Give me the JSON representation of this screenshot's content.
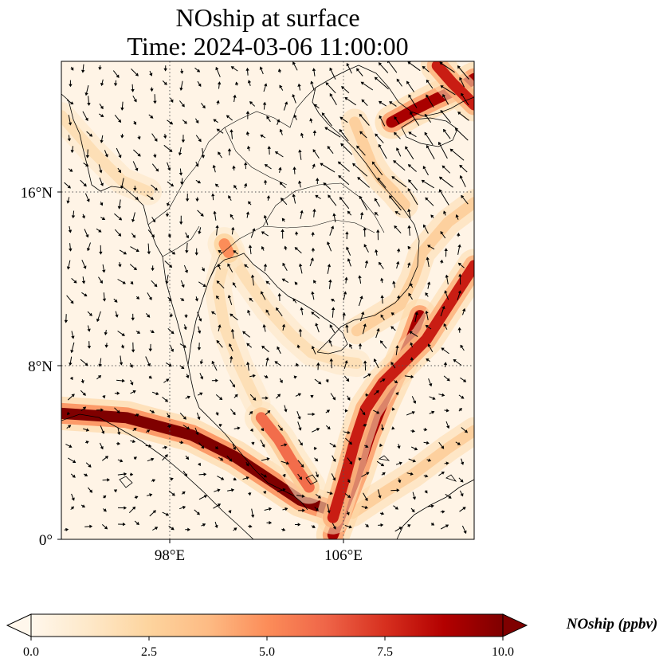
{
  "title": {
    "line1": "NOship at surface",
    "line2": "Time: 2024-03-06 11:00:00"
  },
  "map": {
    "variable": "NOship",
    "extent": {
      "lon_min": 93,
      "lon_max": 112,
      "lat_min": 0,
      "lat_max": 22
    },
    "lon_ticks": [
      {
        "value": 98,
        "label": "98°E"
      },
      {
        "value": 106,
        "label": "106°E"
      }
    ],
    "lat_ticks": [
      {
        "value": 16,
        "label": "16°N"
      },
      {
        "value": 8,
        "label": "8°N"
      },
      {
        "value": 0,
        "label": "0°"
      }
    ],
    "gridlines": true
  },
  "colorbar": {
    "label": "NOship (ppbv)",
    "min": 0.0,
    "max": 10.0,
    "extend": "both",
    "ticks": [
      {
        "value": 0.0,
        "label": "0.0"
      },
      {
        "value": 2.5,
        "label": "2.5"
      },
      {
        "value": 5.0,
        "label": "5.0"
      },
      {
        "value": 7.5,
        "label": "7.5"
      },
      {
        "value": 10.0,
        "label": "10.0"
      }
    ],
    "colormap": [
      "#fff7ec",
      "#fee8c8",
      "#fdd49e",
      "#fdbb84",
      "#fc8d59",
      "#ef6548",
      "#d7301f",
      "#b30000",
      "#7f0000"
    ]
  },
  "shipping_lanes": [
    {
      "name": "strait-of-malacca",
      "value": 10,
      "points": [
        [
          93,
          5.8
        ],
        [
          96,
          5.6
        ],
        [
          99,
          4.8
        ],
        [
          101,
          3.8
        ],
        [
          102.5,
          2.8
        ],
        [
          104,
          1.8
        ],
        [
          105.5,
          1.3
        ]
      ]
    },
    {
      "name": "singapore-north-lane-a",
      "value": 9,
      "points": [
        [
          105.5,
          0.2
        ],
        [
          106,
          1.5
        ],
        [
          106.6,
          3.0
        ],
        [
          107.2,
          4.8
        ],
        [
          107.8,
          6.3
        ],
        [
          108.4,
          7.6
        ],
        [
          109.1,
          9.2
        ],
        [
          109.5,
          10.3
        ]
      ]
    },
    {
      "name": "singapore-north-lane-b",
      "value": 8,
      "points": [
        [
          105.5,
          1.0
        ],
        [
          106.1,
          3.0
        ],
        [
          106.5,
          4.5
        ],
        [
          107,
          6.0
        ],
        [
          107.8,
          7.2
        ],
        [
          108.8,
          8.2
        ],
        [
          109.8,
          9.2
        ],
        [
          110.7,
          10.6
        ],
        [
          112,
          12.6
        ]
      ]
    },
    {
      "name": "malacca-side-branch",
      "value": 6,
      "points": [
        [
          102.2,
          5.6
        ],
        [
          103,
          4.6
        ],
        [
          103.6,
          3.6
        ],
        [
          104.4,
          2.4
        ]
      ]
    },
    {
      "name": "gulf-of-tonkin",
      "value": 9,
      "points": [
        [
          108.2,
          19.2
        ],
        [
          109.3,
          19.8
        ],
        [
          110.3,
          20.3
        ],
        [
          111.2,
          20.7
        ],
        [
          112,
          21.2
        ]
      ]
    },
    {
      "name": "hainan-north",
      "value": 8,
      "points": [
        [
          110.3,
          21.8
        ],
        [
          111,
          21.0
        ],
        [
          112,
          20.0
        ]
      ]
    },
    {
      "name": "bangkok-plume",
      "value": 5,
      "points": [
        [
          100.5,
          13.6
        ],
        [
          100.7,
          13.2
        ]
      ]
    }
  ],
  "faint_lanes": [
    {
      "name": "vietnam-coast",
      "value": 3,
      "points": [
        [
          112,
          15.5
        ],
        [
          110.8,
          14.6
        ],
        [
          109.6,
          13.2
        ],
        [
          109.2,
          12.0
        ],
        [
          108.6,
          10.8
        ],
        [
          107.6,
          10.2
        ],
        [
          106.6,
          9.6
        ]
      ]
    },
    {
      "name": "gulf-of-thailand-east",
      "value": 2,
      "points": [
        [
          100.7,
          13.3
        ],
        [
          101.5,
          12.0
        ],
        [
          102.5,
          10.6
        ],
        [
          103.6,
          9.4
        ],
        [
          104.5,
          8.6
        ],
        [
          105.8,
          8.2
        ],
        [
          106.6,
          8.1
        ]
      ]
    },
    {
      "name": "gulf-of-thailand-west",
      "value": 2,
      "points": [
        [
          100.6,
          13.2
        ],
        [
          100.2,
          11.6
        ],
        [
          100.5,
          9.8
        ],
        [
          101.2,
          8.0
        ],
        [
          102.0,
          6.3
        ]
      ]
    },
    {
      "name": "tonkin-coast",
      "value": 3,
      "points": [
        [
          106.5,
          19.2
        ],
        [
          106.9,
          18.2
        ],
        [
          107.3,
          17.2
        ],
        [
          107.7,
          16.6
        ],
        [
          108.3,
          16.0
        ],
        [
          108.8,
          15.4
        ]
      ]
    },
    {
      "name": "north-bay-of-bengal",
      "value": 2,
      "points": [
        [
          93,
          19.5
        ],
        [
          94.5,
          17.8
        ],
        [
          95.8,
          16.5
        ],
        [
          97.0,
          16.0
        ]
      ]
    },
    {
      "name": "south-china-sea-east",
      "value": 3,
      "points": [
        [
          112,
          5.0
        ],
        [
          110.8,
          4.2
        ],
        [
          109.2,
          3.0
        ],
        [
          107.6,
          2.0
        ],
        [
          106.4,
          1.2
        ]
      ]
    }
  ]
}
